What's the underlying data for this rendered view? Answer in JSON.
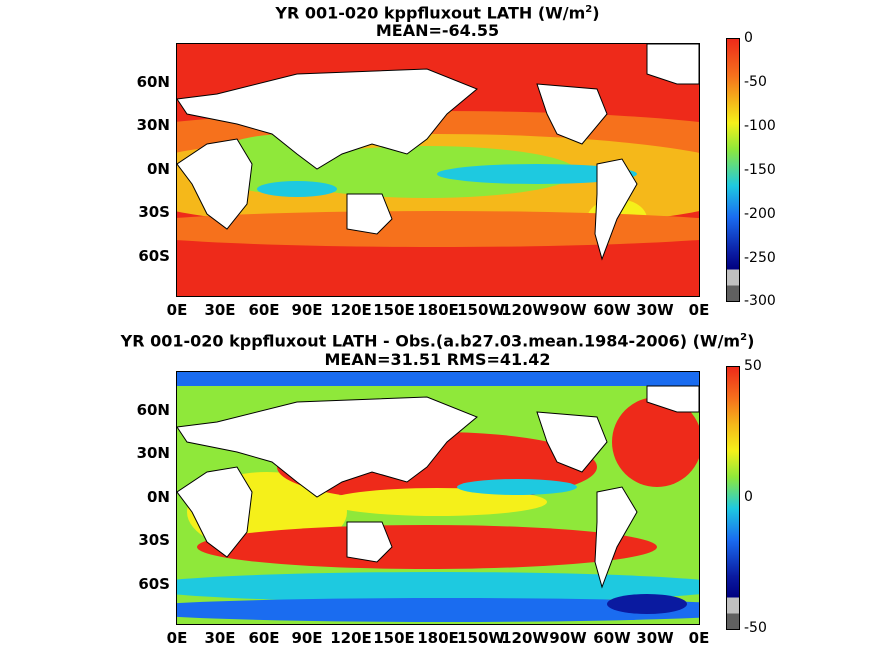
{
  "maps": [
    {
      "title_line1": "YR 001-020 kppfluxout  LATH (W/m",
      "title_sup": "2",
      "title_close": ")",
      "title_line2": "MEAN=-64.55",
      "lat_labels": [
        "60N",
        "30N",
        "0N",
        "30S",
        "60S"
      ],
      "lon_labels": [
        "0E",
        "30E",
        "60E",
        "90E",
        "120E",
        "150E",
        "180E",
        "150W",
        "120W",
        "90W",
        "60W",
        "30W",
        "0E"
      ],
      "colorbar": {
        "ticks": [
          "0",
          "-50",
          "-100",
          "-150",
          "-200",
          "-250",
          "-300"
        ],
        "min": -300,
        "max": 0
      }
    },
    {
      "title_line1": "YR 001-020 kppfluxout LATH - Obs.(a.b27.03.mean.1984-2006) (W/m",
      "title_sup": "2",
      "title_close": ")",
      "title_line2": "MEAN=31.51 RMS=41.42",
      "lat_labels": [
        "60N",
        "30N",
        "0N",
        "30S",
        "60S"
      ],
      "lon_labels": [
        "0E",
        "30E",
        "60E",
        "90E",
        "120E",
        "150E",
        "180E",
        "150W",
        "120W",
        "90W",
        "60W",
        "30W",
        "0E"
      ],
      "colorbar": {
        "ticks": [
          "50",
          "0",
          "-50"
        ],
        "min": -50,
        "max": 50
      }
    }
  ],
  "colors": {
    "red": "#ee2a1a",
    "orange": "#f6711c",
    "yellow": "#f5f01a",
    "green": "#8fe83a",
    "cyan": "#1ec9e0",
    "blue": "#1a6cf0",
    "darkblue": "#0a1aa0",
    "land": "#ffffff"
  }
}
